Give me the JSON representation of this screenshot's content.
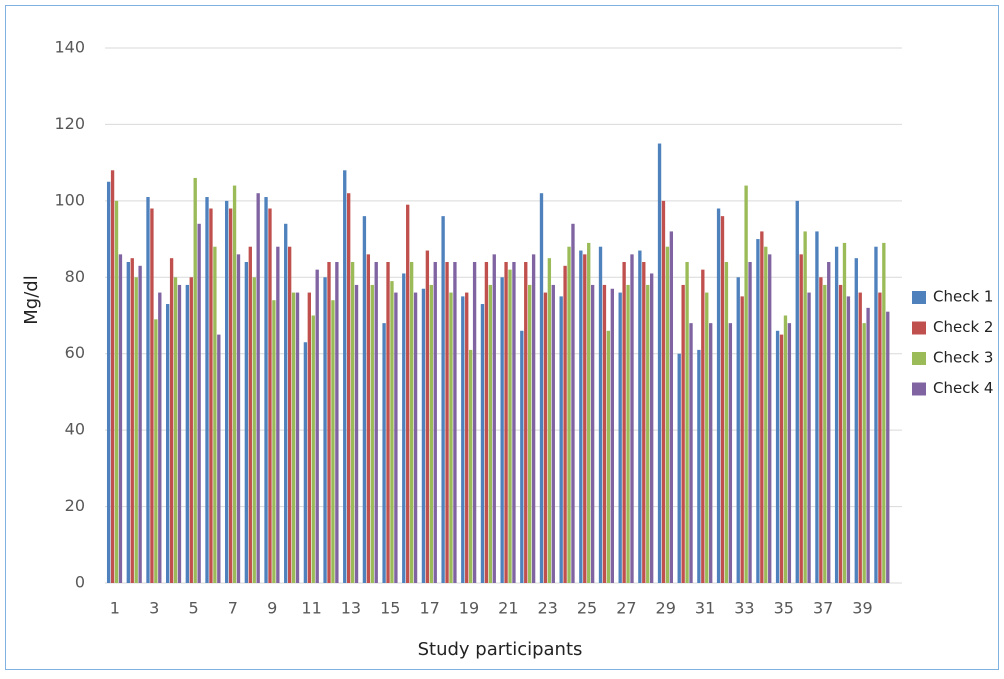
{
  "chart_data": {
    "type": "bar",
    "x_label": "Study participants",
    "y_label": "Mg/dl",
    "categories": [
      "1",
      null,
      "3",
      null,
      "5",
      null,
      "7",
      null,
      "9",
      null,
      "11",
      null,
      "13",
      null,
      "15",
      null,
      "17",
      null,
      "19",
      null,
      "21",
      null,
      "23",
      null,
      "25",
      null,
      "27",
      null,
      "29",
      null,
      "31",
      null,
      "33",
      null,
      "35",
      null,
      "37",
      null,
      "39",
      null
    ],
    "series": [
      {
        "name": "Check 1",
        "color": "#4f81bd",
        "values": [
          105,
          84,
          101,
          73,
          78,
          101,
          100,
          84,
          101,
          94,
          63,
          80,
          108,
          96,
          68,
          81,
          77,
          96,
          75,
          73,
          80,
          66,
          102,
          75,
          87,
          88,
          76,
          87,
          115,
          60,
          61,
          98,
          80,
          90,
          66,
          100,
          92,
          88,
          85,
          88
        ]
      },
      {
        "name": "Check 2",
        "color": "#c0504d",
        "values": [
          108,
          85,
          98,
          85,
          80,
          98,
          98,
          88,
          98,
          88,
          76,
          84,
          102,
          86,
          84,
          99,
          87,
          84,
          76,
          84,
          84,
          84,
          76,
          83,
          86,
          78,
          84,
          84,
          100,
          78,
          82,
          96,
          75,
          92,
          65,
          86,
          80,
          78,
          76,
          76
        ]
      },
      {
        "name": "Check 3",
        "color": "#9bbb59",
        "values": [
          100,
          80,
          69,
          80,
          106,
          88,
          104,
          80,
          74,
          76,
          70,
          74,
          84,
          78,
          79,
          84,
          78,
          76,
          61,
          78,
          82,
          78,
          85,
          88,
          89,
          66,
          78,
          78,
          88,
          84,
          76,
          84,
          104,
          88,
          70,
          92,
          78,
          89,
          68,
          89
        ]
      },
      {
        "name": "Check 4",
        "color": "#8064a2",
        "values": [
          86,
          83,
          76,
          78,
          94,
          65,
          86,
          102,
          88,
          76,
          82,
          84,
          78,
          84,
          76,
          76,
          84,
          84,
          84,
          86,
          84,
          86,
          78,
          94,
          78,
          77,
          86,
          81,
          92,
          68,
          68,
          68,
          84,
          86,
          68,
          76,
          84,
          75,
          72,
          71
        ]
      }
    ],
    "ylim": [
      0,
      140
    ],
    "yticks": [
      0,
      20,
      40,
      60,
      80,
      100,
      120,
      140
    ],
    "grid": true,
    "legend": "right"
  }
}
